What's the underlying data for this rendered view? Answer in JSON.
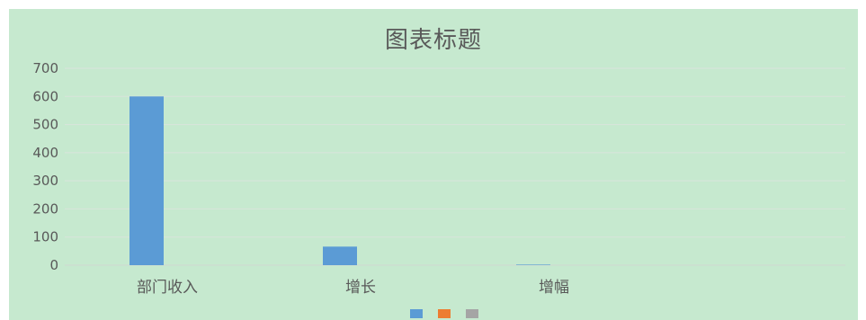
{
  "chart_data": {
    "type": "bar",
    "title": "图表标题",
    "xlabel": "",
    "ylabel": "",
    "categories": [
      "部门收入",
      "增长",
      "增幅"
    ],
    "series": [
      {
        "values": [
          600,
          66,
          2
        ],
        "color": "#5b9bd5"
      },
      {
        "values": [
          0,
          0,
          0
        ],
        "color": "#ed7d31"
      },
      {
        "values": [
          0,
          0,
          0
        ],
        "color": "#a5a5a5"
      }
    ],
    "ylim": [
      0,
      700
    ],
    "yticks": [
      "0",
      "100",
      "200",
      "300",
      "400",
      "500",
      "600",
      "700"
    ],
    "grid": true,
    "legend": "bottom",
    "background": "#c6e9cf",
    "gridline_color": "#d9e4dc",
    "axis_color": "#d0d8d2"
  }
}
